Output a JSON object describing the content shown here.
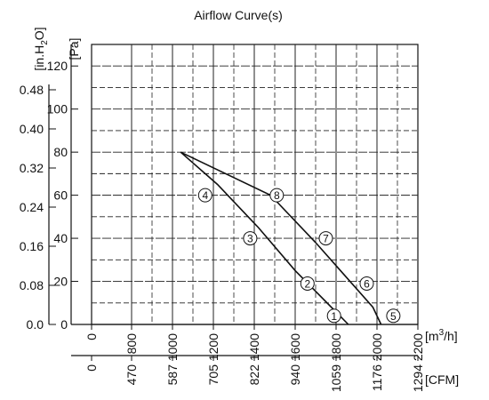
{
  "chart_data": {
    "type": "line",
    "title": "Airflow Curve(s)",
    "pa_label": "[Pa]",
    "inh2o_label": "[in.H",
    "inh2o_sub": "2",
    "inh2o_tail": "O]",
    "m3h_label": "[m",
    "m3h_sup": "3",
    "m3h_tail": "/h]",
    "cfm_label": "[CFM]",
    "xlim": [
      0,
      2200
    ],
    "ylim": [
      0,
      130
    ],
    "grid": true,
    "x_ticks": [
      "0",
      "800",
      "1000",
      "1200",
      "1400",
      "1600",
      "1800",
      "2000",
      "2200"
    ],
    "cfm_ticks": [
      "0",
      "470",
      "587",
      "705",
      "822",
      "940",
      "1059",
      "1176",
      "1294"
    ],
    "pa_ticks": [
      "0",
      "20",
      "40",
      "60",
      "80",
      "100",
      "120"
    ],
    "inh2o_ticks": [
      "0.0",
      "0.08",
      "0.16",
      "0.24",
      "0.32",
      "0.40",
      "0.48"
    ],
    "series": [
      {
        "x": [
          1040,
          1220,
          1420,
          1600,
          1860
        ],
        "y": [
          80,
          65,
          45,
          25,
          0
        ]
      },
      {
        "x": [
          1040,
          1480,
          1700,
          1980,
          2020
        ],
        "y": [
          80,
          60,
          38,
          8,
          0
        ]
      }
    ],
    "markers": [
      {
        "label": "1",
        "x": 1790,
        "y": 4
      },
      {
        "label": "2",
        "x": 1660,
        "y": 19
      },
      {
        "label": "3",
        "x": 1380,
        "y": 40
      },
      {
        "label": "4",
        "x": 1160,
        "y": 60
      },
      {
        "label": "5",
        "x": 2080,
        "y": 4
      },
      {
        "label": "6",
        "x": 1950,
        "y": 19
      },
      {
        "label": "7",
        "x": 1750,
        "y": 40
      },
      {
        "label": "8",
        "x": 1510,
        "y": 60
      }
    ]
  }
}
